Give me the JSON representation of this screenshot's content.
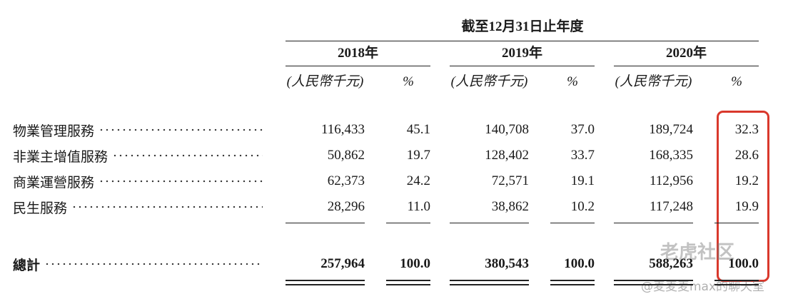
{
  "header": {
    "title": "截至12月31日止年度",
    "years": [
      "2018年",
      "2019年",
      "2020年"
    ],
    "unit": "(人民幣千元)",
    "percent": "%"
  },
  "table": {
    "rows": [
      {
        "label": "物業管理服務",
        "values": [
          "116,433",
          "45.1",
          "140,708",
          "37.0",
          "189,724",
          "32.3"
        ]
      },
      {
        "label": "非業主增值服務",
        "values": [
          "50,862",
          "19.7",
          "128,402",
          "33.7",
          "168,335",
          "28.6"
        ]
      },
      {
        "label": "商業運營服務",
        "values": [
          "62,373",
          "24.2",
          "72,571",
          "19.1",
          "112,956",
          "19.2"
        ]
      },
      {
        "label": "民生服務",
        "values": [
          "28,296",
          "11.0",
          "38,862",
          "10.2",
          "117,248",
          "19.9"
        ]
      }
    ],
    "total": {
      "label": "總計",
      "values": [
        "257,964",
        "100.0",
        "380,543",
        "100.0",
        "588,263",
        "100.0"
      ]
    }
  },
  "watermark": {
    "site": "老虎社区",
    "author": "@麦麦麦max的聊天室"
  }
}
